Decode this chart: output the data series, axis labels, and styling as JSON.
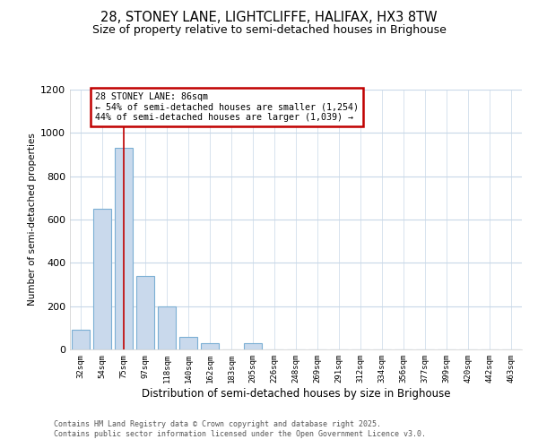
{
  "title1": "28, STONEY LANE, LIGHTCLIFFE, HALIFAX, HX3 8TW",
  "title2": "Size of property relative to semi-detached houses in Brighouse",
  "xlabel": "Distribution of semi-detached houses by size in Brighouse",
  "ylabel": "Number of semi-detached properties",
  "categories": [
    "32sqm",
    "54sqm",
    "75sqm",
    "97sqm",
    "118sqm",
    "140sqm",
    "162sqm",
    "183sqm",
    "205sqm",
    "226sqm",
    "248sqm",
    "269sqm",
    "291sqm",
    "312sqm",
    "334sqm",
    "356sqm",
    "377sqm",
    "399sqm",
    "420sqm",
    "442sqm",
    "463sqm"
  ],
  "values": [
    90,
    650,
    930,
    340,
    200,
    60,
    30,
    0,
    30,
    0,
    0,
    0,
    0,
    0,
    0,
    0,
    0,
    0,
    0,
    0,
    0
  ],
  "bar_color": "#c9d9ec",
  "bar_edge_color": "#7bafd4",
  "highlight_bar_index": 2,
  "highlight_line_color": "#c00000",
  "ylim": [
    0,
    1200
  ],
  "yticks": [
    0,
    200,
    400,
    600,
    800,
    1000,
    1200
  ],
  "property_label": "28 STONEY LANE: 86sqm",
  "annotation_line1": "← 54% of semi-detached houses are smaller (1,254)",
  "annotation_line2": "44% of semi-detached houses are larger (1,039) →",
  "annotation_box_color": "#ffffff",
  "annotation_box_edge_color": "#c00000",
  "footer1": "Contains HM Land Registry data © Crown copyright and database right 2025.",
  "footer2": "Contains public sector information licensed under the Open Government Licence v3.0.",
  "bg_color": "#ffffff",
  "grid_color": "#c8d8e8",
  "title1_fontsize": 10.5,
  "title2_fontsize": 9
}
